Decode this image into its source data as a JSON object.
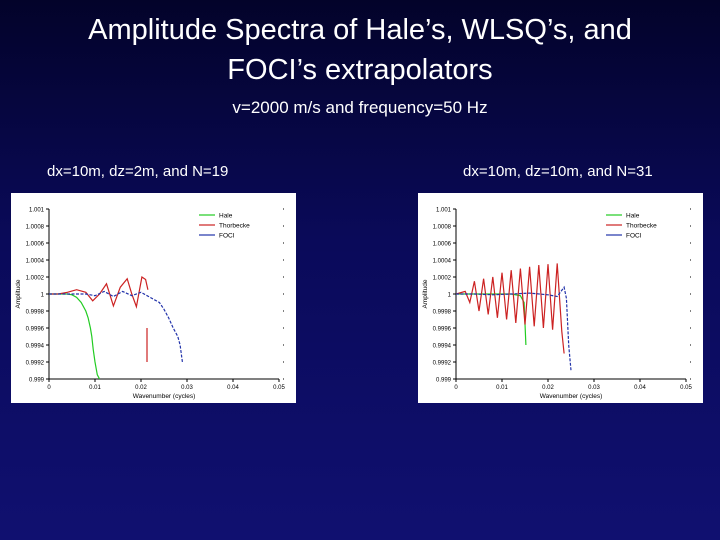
{
  "slide": {
    "title_line1": "Amplitude Spectra of Hale’s, WLSQ’s, and",
    "title_line2": "FOCI’s extrapolators",
    "subtitle": "v=2000 m/s and frequency=50 Hz"
  },
  "colors": {
    "hale": "#22cc22",
    "thorbecke": "#cc2222",
    "foci": "#2233aa"
  },
  "chart_data": [
    {
      "type": "line",
      "caption": "dx=10m, dz=2m, and N=19",
      "xlabel": "Wavenumber (cycles)",
      "ylabel": "Amplitude",
      "xlim": [
        0,
        0.05
      ],
      "ylim": [
        0.999,
        1.001
      ],
      "xticks": [
        "0",
        "0.01",
        "0.02",
        "0.03",
        "0.04",
        "0.05"
      ],
      "yticks": [
        "1.001",
        "1.0008",
        "1.0006",
        "1.0004",
        "1.0002",
        "1",
        "0.9998",
        "0.9996",
        "0.9994",
        "0.9992",
        "0.999"
      ],
      "legend": [
        "Hale",
        "Thorbecke",
        "FOCI"
      ],
      "series": [
        {
          "name": "Hale",
          "color": "#22cc22",
          "x": [
            0,
            0.002,
            0.004,
            0.005,
            0.006,
            0.007,
            0.008,
            0.0085,
            0.009,
            0.0093,
            0.0096,
            0.01,
            0.0105,
            0.011
          ],
          "y": [
            1.0,
            1.0,
            1.0,
            0.99999,
            0.99996,
            0.9999,
            0.9998,
            0.99972,
            0.9996,
            0.9995,
            0.99935,
            0.9992,
            0.99905,
            0.999
          ]
        },
        {
          "name": "Thorbecke",
          "color": "#cc2222",
          "x": [
            0,
            0.002,
            0.004,
            0.006,
            0.008,
            0.0095,
            0.011,
            0.0125,
            0.014,
            0.0155,
            0.017,
            0.018,
            0.019,
            0.0202,
            0.021,
            0.0215
          ],
          "y": [
            1.0,
            1.0,
            1.00002,
            1.00005,
            1.00002,
            0.99992,
            1.0,
            1.00012,
            0.99986,
            1.00008,
            1.00018,
            1.0,
            0.99985,
            1.0002,
            1.00017,
            1.00005
          ]
        },
        {
          "name": "Thorbecke",
          "color": "#cc2222",
          "x": [
            0.0213,
            0.0213
          ],
          "y": [
            0.9996,
            0.9992
          ]
        },
        {
          "name": "FOCI",
          "color": "#2233aa",
          "x": [
            0,
            0.004,
            0.008,
            0.01,
            0.012,
            0.014,
            0.016,
            0.018,
            0.02,
            0.022,
            0.024,
            0.025,
            0.026,
            0.027,
            0.028,
            0.0285,
            0.029
          ],
          "y": [
            1.0,
            1.0,
            1.0,
            0.99998,
            1.00003,
            0.99997,
            1.00003,
            0.99998,
            1.00002,
            0.99996,
            0.9999,
            0.99982,
            0.99972,
            0.9996,
            0.9995,
            0.9994,
            0.9992
          ]
        }
      ]
    },
    {
      "type": "line",
      "caption": "dx=10m, dz=10m, and N=31",
      "xlabel": "Wavenumber (cycles)",
      "ylabel": "Amplitude",
      "xlim": [
        0,
        0.05
      ],
      "ylim": [
        0.999,
        1.001
      ],
      "xticks": [
        "0",
        "0.01",
        "0.02",
        "0.03",
        "0.04",
        "0.05"
      ],
      "yticks": [
        "1.001",
        "1.0008",
        "1.0006",
        "1.0004",
        "1.0002",
        "1",
        "0.9998",
        "0.9996",
        "0.9994",
        "0.9992",
        "0.999"
      ],
      "legend": [
        "Hale",
        "Thorbecke",
        "FOCI"
      ],
      "series": [
        {
          "name": "Hale",
          "color": "#22cc22",
          "x": [
            0,
            0.004,
            0.008,
            0.012,
            0.014,
            0.0148,
            0.0152
          ],
          "y": [
            1.0,
            1.0,
            1.0,
            1.0,
            0.99998,
            0.9999,
            0.9994
          ]
        },
        {
          "name": "Thorbecke",
          "color": "#cc2222",
          "x": [
            0,
            0.002,
            0.003,
            0.004,
            0.005,
            0.006,
            0.007,
            0.008,
            0.009,
            0.01,
            0.011,
            0.012,
            0.013,
            0.014,
            0.015,
            0.016,
            0.017,
            0.018,
            0.019,
            0.02,
            0.021,
            0.022,
            0.023,
            0.0235
          ],
          "y": [
            1.0,
            1.00003,
            0.9999,
            1.00015,
            0.9998,
            1.00018,
            0.99976,
            1.0002,
            0.99972,
            1.00025,
            0.9997,
            1.00028,
            0.99966,
            1.0003,
            0.99964,
            1.00032,
            0.99962,
            1.00034,
            0.9996,
            1.00035,
            0.99958,
            1.00036,
            0.99956,
            0.9993
          ]
        },
        {
          "name": "FOCI",
          "color": "#2233aa",
          "x": [
            0,
            0.004,
            0.008,
            0.012,
            0.016,
            0.02,
            0.022,
            0.0235,
            0.024,
            0.0245,
            0.025
          ],
          "y": [
            1.0,
            1.0,
            0.99999,
            1.0,
            1.00001,
            0.99999,
            0.99997,
            1.00008,
            0.99995,
            0.9994,
            0.9991
          ]
        }
      ]
    }
  ]
}
